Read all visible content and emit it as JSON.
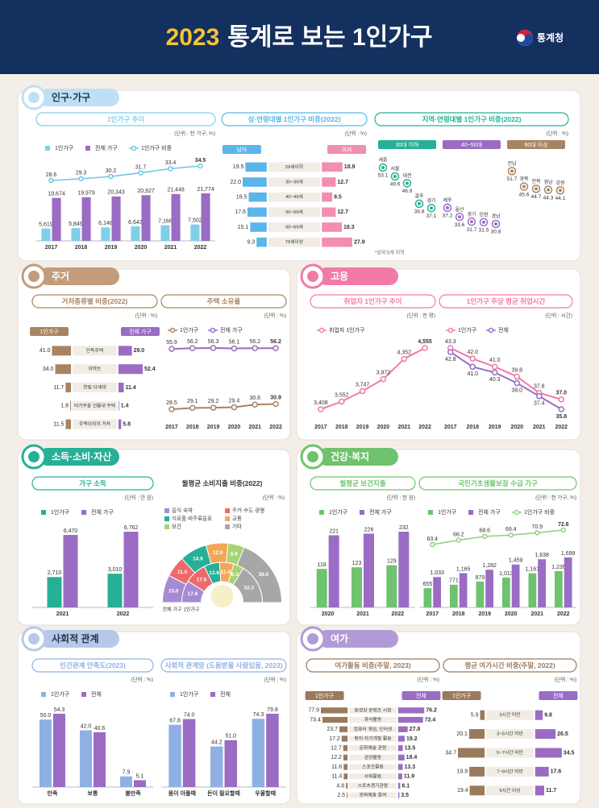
{
  "header": {
    "year": "2023",
    "title": "통계로 보는 1인가구",
    "org": "통계청"
  },
  "sections": [
    {
      "title": "인구·가구",
      "color": "#bfe0f4"
    },
    {
      "title": "주거",
      "color": "#c39d7b"
    },
    {
      "title": "고용",
      "color": "#f27aa6"
    },
    {
      "title": "소득·소비·자산",
      "color": "#26b096"
    },
    {
      "title": "건강·복지",
      "color": "#6fc26e"
    },
    {
      "title": "사회적 관계",
      "color": "#b7c9ea"
    },
    {
      "title": "여가",
      "color": "#b29ad6"
    }
  ],
  "chart_data": [
    {
      "type": "bar",
      "title": "1인가구 추이",
      "unit": "(단위 : 천 가구, %)",
      "categories": [
        "2017",
        "2018",
        "2019",
        "2020",
        "2021",
        "2022"
      ],
      "series": [
        {
          "name": "1인가구",
          "color": "#7fcfe9",
          "values": [
            5619,
            5849,
            6148,
            6643,
            7166,
            7502
          ],
          "value_labels": [
            "5,619",
            "5,849",
            "6,148",
            "6,643",
            "7,166",
            "7,502"
          ]
        },
        {
          "name": "전체 가구",
          "color": "#9a6cc4",
          "values": [
            19674,
            19979,
            20343,
            20927,
            21448,
            21774
          ],
          "value_labels": [
            "19,674",
            "19,979",
            "20,343",
            "20,927",
            "21,448",
            "21,774"
          ]
        },
        {
          "name": "1인가구 비중",
          "color": "#6cc6e3",
          "axis": "y2",
          "values": [
            28.6,
            29.3,
            30.2,
            31.7,
            33.4,
            34.5
          ]
        }
      ]
    },
    {
      "type": "butterfly",
      "title": "성·연령대별 1인가구 비중(2022)",
      "unit": "(단위 : %)",
      "categories": [
        "29세이하",
        "30~39세",
        "40~49세",
        "50~59세",
        "60~69세",
        "70세이상"
      ],
      "series": [
        {
          "name": "남자",
          "color": "#5ab6ea",
          "values": [
            19.5,
            22.0,
            16.5,
            17.6,
            15.1,
            9.3
          ],
          "value_labels": [
            "19.5",
            "22.0",
            "16.5",
            "17.6",
            "15.1",
            "9.3"
          ]
        },
        {
          "name": "여자",
          "color": "#f28db3",
          "values": [
            18.9,
            12.7,
            9.5,
            12.7,
            18.3,
            27.9
          ]
        }
      ]
    },
    {
      "type": "dot",
      "title": "지역·연령대별 1인가구 비중(2022)",
      "unit": "(단위 : %)",
      "note": "*상위 5개 지역",
      "groups": [
        {
          "name": "30대 이하",
          "color": "#26b096",
          "categories": [
            "세종",
            "서울",
            "대전",
            "광주",
            "경기"
          ],
          "values": [
            53.1,
            49.6,
            46.9,
            38.8,
            37.1
          ]
        },
        {
          "name": "40~50대",
          "color": "#9a6cc4",
          "categories": [
            "제주",
            "울산",
            "경기",
            "인천",
            "경남"
          ],
          "values": [
            37.2,
            33.6,
            31.7,
            31.5,
            30.8
          ]
        },
        {
          "name": "60대 이상",
          "color": "#a88463",
          "categories": [
            "전남",
            "경북",
            "전북",
            "경남",
            "강원"
          ],
          "values": [
            51.7,
            45.6,
            44.7,
            44.3,
            44.1
          ]
        }
      ]
    },
    {
      "type": "butterfly",
      "title": "거처종류별 비중(2022)",
      "unit": "(단위 : %)",
      "categories": [
        "단독주택",
        "아파트",
        "연립·다세대",
        "비거주용 건물내 주택",
        "주택이외의 거처"
      ],
      "series": [
        {
          "name": "1인가구",
          "color": "#a88463",
          "values": [
            41.0,
            34.0,
            11.7,
            1.8,
            11.5
          ],
          "value_labels": [
            "41.0",
            "34.0",
            "11.7",
            "1.8",
            "11.5"
          ]
        },
        {
          "name": "전체 가구",
          "color": "#9a6cc4",
          "values": [
            29.0,
            52.4,
            11.4,
            1.4,
            5.8
          ],
          "value_labels": [
            "29.0",
            "52.4",
            "11.4",
            "1.4",
            "5.8"
          ]
        }
      ]
    },
    {
      "type": "line",
      "title": "주택 소유율",
      "unit": "(단위 : %)",
      "categories": [
        "2017",
        "2018",
        "2019",
        "2020",
        "2021",
        "2022"
      ],
      "series": [
        {
          "name": "1인가구",
          "color": "#a88463",
          "values": [
            28.5,
            29.1,
            29.2,
            29.4,
            30.6,
            30.9
          ]
        },
        {
          "name": "전체 가구",
          "color": "#9a6cc4",
          "values": [
            55.9,
            56.2,
            56.3,
            56.1,
            56.2,
            56.2
          ]
        }
      ]
    },
    {
      "type": "line",
      "title": "취업자 1인가구 추이",
      "unit": "(단위 : 천 명)",
      "categories": [
        "2017",
        "2018",
        "2019",
        "2020",
        "2021",
        "2022"
      ],
      "series": [
        {
          "name": "취업자 1인가구",
          "color": "#f27aa6",
          "values": [
            3408,
            3552,
            3747,
            3972,
            4352,
            4555
          ],
          "value_labels": [
            "3,408",
            "3,552",
            "3,747",
            "3,972",
            "4,352",
            "4,555"
          ]
        }
      ]
    },
    {
      "type": "line",
      "title": "1인가구 주당 평균 취업시간",
      "unit": "(단위 : 시간)",
      "categories": [
        "2017",
        "2018",
        "2019",
        "2020",
        "2021",
        "2022"
      ],
      "series": [
        {
          "name": "1인가구",
          "color": "#f27aa6",
          "values": [
            43.3,
            42.0,
            41.0,
            39.8,
            37.8,
            37.0
          ],
          "value_labels": [
            "43.3",
            "42.0",
            "41.0",
            "39.8",
            "37.8",
            "37.0"
          ]
        },
        {
          "name": "전체",
          "color": "#9a6cc4",
          "values": [
            42.8,
            41.0,
            40.3,
            39.0,
            37.4,
            35.8
          ],
          "value_labels": [
            "42.8",
            "41.0",
            "40.3",
            "39.0",
            "37.4",
            "35.8"
          ]
        }
      ]
    },
    {
      "type": "bar",
      "title": "가구 소득",
      "unit": "(단위 : 만 원)",
      "categories": [
        "2021",
        "2022"
      ],
      "series": [
        {
          "name": "1인가구",
          "color": "#26b096",
          "values": [
            2710,
            3010
          ],
          "value_labels": [
            "2,710",
            "3,010"
          ]
        },
        {
          "name": "전체 가구",
          "color": "#9a6cc4",
          "values": [
            6470,
            6762
          ],
          "value_labels": [
            "6,470",
            "6,762"
          ]
        }
      ]
    },
    {
      "type": "donut",
      "title": "월평균 소비지출 비중(2022)",
      "unit": "(단위 : %)",
      "categories": [
        "음식·숙박",
        "주거·수도·광열",
        "식료품·비주류음료",
        "교통",
        "보건",
        "기타"
      ],
      "colors": [
        "#a58bd3",
        "#ee6a6a",
        "#26b096",
        "#f2a65a",
        "#a6d46e",
        "#a7a7a7"
      ],
      "series": [
        {
          "name": "전체 가구",
          "values": [
            15.0,
            11.5,
            14.8,
            12.0,
            8.8,
            38.0
          ],
          "value_labels": [
            "15.0",
            "11.5",
            "14.8",
            "12.0",
            "8.8",
            "38.0"
          ]
        },
        {
          "name": "1인가구",
          "values": [
            17.8,
            17.6,
            12.6,
            11.4,
            8.3,
            32.3
          ]
        }
      ]
    },
    {
      "type": "bar",
      "title": "월평균 보건지출",
      "unit": "(단위 : 천 원)",
      "categories": [
        "2020",
        "2021",
        "2022"
      ],
      "series": [
        {
          "name": "1인가구",
          "color": "#6fc26e",
          "values": [
            118,
            123,
            129
          ]
        },
        {
          "name": "전체 가구",
          "color": "#9a6cc4",
          "values": [
            221,
            226,
            232
          ]
        }
      ]
    },
    {
      "type": "bar",
      "title": "국민기초생활보장 수급 가구",
      "unit": "(단위 : 천 가구, %)",
      "categories": [
        "2017",
        "2018",
        "2019",
        "2020",
        "2021",
        "2022"
      ],
      "series": [
        {
          "name": "1인가구",
          "color": "#6fc26e",
          "values": [
            655,
            771,
            879,
            1013,
            1161,
            1235
          ],
          "value_labels": [
            "655",
            "771",
            "879",
            "1,013",
            "1,161",
            "1,235"
          ]
        },
        {
          "name": "전체 가구",
          "color": "#9a6cc4",
          "values": [
            1033,
            1165,
            1282,
            1459,
            1638,
            1699
          ],
          "value_labels": [
            "1,033",
            "1,165",
            "1,282",
            "1,459",
            "1,638",
            "1,699"
          ]
        },
        {
          "name": "1인가구 비중",
          "color": "#8fd07e",
          "axis": "y2",
          "values": [
            63.4,
            66.2,
            68.6,
            69.4,
            70.9,
            72.6
          ]
        }
      ]
    },
    {
      "type": "bar",
      "title": "인간관계 만족도(2023)",
      "unit": "(단위 : %)",
      "categories": [
        "만족",
        "보통",
        "불만족"
      ],
      "series": [
        {
          "name": "1인가구",
          "color": "#8fb0e3",
          "values": [
            50.0,
            42.0,
            7.9
          ],
          "value_labels": [
            "50.0",
            "42.0",
            "7.9"
          ]
        },
        {
          "name": "전체",
          "color": "#9a6cc4",
          "values": [
            54.3,
            40.6,
            5.1
          ]
        }
      ]
    },
    {
      "type": "bar",
      "title": "사회적 관계망 (도움받을 사람있음, 2023)",
      "unit": "(단위 : %)",
      "categories": [
        "몸이 아플때",
        "돈이 필요할때",
        "우울할때"
      ],
      "series": [
        {
          "name": "1인가구",
          "color": "#8fb0e3",
          "values": [
            67.8,
            44.2,
            74.3
          ]
        },
        {
          "name": "전체",
          "color": "#9a6cc4",
          "values": [
            74.0,
            51.0,
            79.8
          ],
          "value_labels": [
            "74.0",
            "51.0",
            "79.8"
          ]
        }
      ]
    },
    {
      "type": "butterfly",
      "title": "여가활동 비중(주말, 2023)",
      "unit": "(단위 : %)",
      "categories": [
        "동영상 콘텐츠 시청",
        "휴식활동",
        "컴퓨터 게임, 인터넷",
        "취미·자기개발 활동",
        "문화예술 관람",
        "관광활동",
        "스포츠활동",
        "사회활동",
        "스포츠경기관람",
        "문화예술 참여"
      ],
      "series": [
        {
          "name": "1인가구",
          "color": "#9b7a5c",
          "values": [
            77.9,
            73.4,
            23.7,
            17.2,
            12.7,
            12.2,
            11.6,
            11.4,
            4.8,
            2.5
          ]
        },
        {
          "name": "전체",
          "color": "#9a6cc4",
          "values": [
            76.2,
            72.4,
            27.8,
            19.2,
            13.5,
            18.4,
            13.3,
            11.9,
            6.1,
            3.5
          ]
        }
      ]
    },
    {
      "type": "butterfly",
      "title": "평균 여가시간 비중(주말, 2022)",
      "unit": "(단위 : %)",
      "categories": [
        "3시간 미만",
        "3~5시간 미만",
        "5~7시간 미만",
        "7~9시간 미만",
        "9시간 이상"
      ],
      "series": [
        {
          "name": "1인가구",
          "color": "#9b7a5c",
          "values": [
            5.9,
            20.1,
            34.7,
            19.9,
            19.4
          ]
        },
        {
          "name": "전체",
          "color": "#9a6cc4",
          "values": [
            9.8,
            26.5,
            34.5,
            17.6,
            11.7
          ]
        }
      ]
    }
  ]
}
